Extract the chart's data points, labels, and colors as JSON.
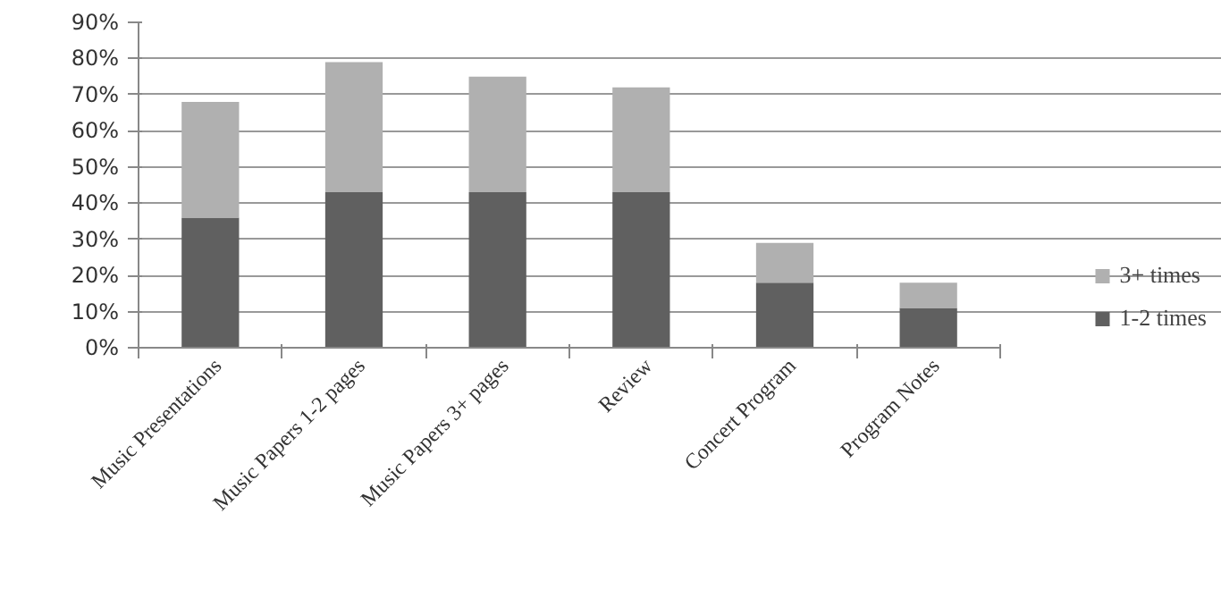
{
  "chart_data": {
    "type": "bar",
    "stacked": true,
    "categories": [
      "Music Presentations",
      "Music Papers 1-2 pages",
      "Music Papers 3+ pages",
      "Review",
      "Concert Program",
      "Program Notes"
    ],
    "series": [
      {
        "name": "1-2 times",
        "color": "#606060",
        "values": [
          36,
          43,
          43,
          43,
          18,
          11
        ]
      },
      {
        "name": "3+ times",
        "color": "#b0b0b0",
        "values": [
          32,
          36,
          32,
          29,
          11,
          7
        ]
      }
    ],
    "ylim": [
      0,
      90
    ],
    "yticks": [
      {
        "value": 0,
        "label": "0%"
      },
      {
        "value": 10,
        "label": "10%"
      },
      {
        "value": 20,
        "label": "20%"
      },
      {
        "value": 30,
        "label": "30%"
      },
      {
        "value": 40,
        "label": "40%"
      },
      {
        "value": 50,
        "label": "50%"
      },
      {
        "value": 60,
        "label": "60%"
      },
      {
        "value": 70,
        "label": "70%"
      },
      {
        "value": 80,
        "label": "80%"
      },
      {
        "value": 90,
        "label": "90%"
      }
    ],
    "grid": "y",
    "legend": "right"
  }
}
